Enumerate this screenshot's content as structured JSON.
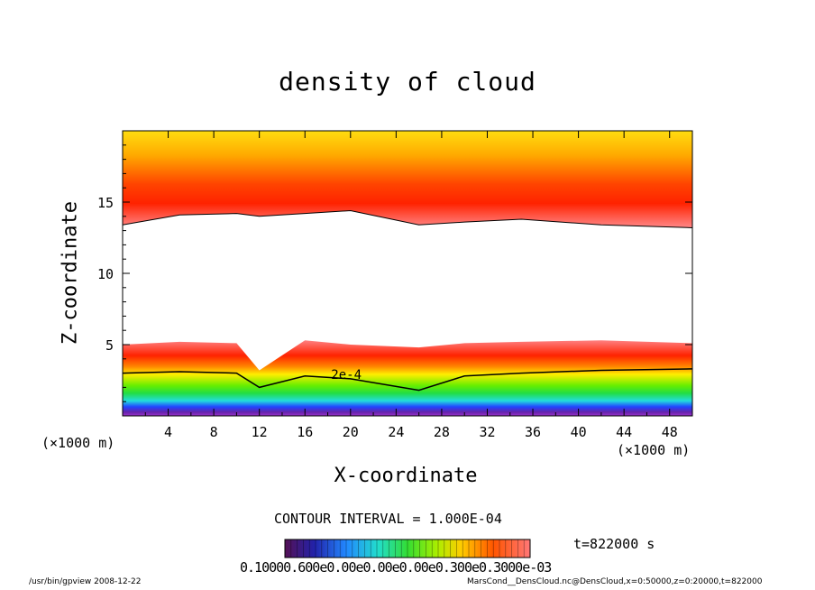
{
  "chart_data": {
    "type": "heatmap",
    "title": "density of cloud",
    "xlabel": "X-coordinate",
    "ylabel": "Z-coordinate",
    "x_unit": "(×1000 m)",
    "z_unit": "(×1000 m)",
    "xlim": [
      0,
      50
    ],
    "ylim": [
      0,
      20
    ],
    "x_ticks": [
      "4",
      "8",
      "12",
      "16",
      "20",
      "24",
      "28",
      "32",
      "36",
      "40",
      "44",
      "48"
    ],
    "x_tick_values": [
      4,
      8,
      12,
      16,
      20,
      24,
      28,
      32,
      36,
      40,
      44,
      48
    ],
    "y_ticks": [
      "5",
      "10",
      "15"
    ],
    "y_tick_values": [
      5,
      10,
      15
    ],
    "contour_label": "2e-4",
    "contour_interval": "CONTOUR INTERVAL = 1.000E-04",
    "time": "t=822000 s",
    "colorbar_labels": "0.10000.600e0.00e0.00e0.00e0.300e0.3000e-03",
    "upper_layer_base_km": [
      13.4,
      14.1,
      14.2,
      14.0,
      14.2,
      14.4,
      13.4,
      13.6,
      13.8,
      13.4,
      13.2
    ],
    "lower_layer_top_km": [
      5.0,
      5.2,
      5.1,
      3.2,
      5.3,
      5.0,
      4.8,
      5.1,
      5.2,
      5.3,
      5.1
    ],
    "contour_2e4_km": [
      3.0,
      3.1,
      3.0,
      2.0,
      2.8,
      2.6,
      1.8,
      2.8,
      3.0,
      3.2,
      3.3
    ],
    "sample_x_km": [
      0,
      5,
      10,
      12,
      16,
      20,
      26,
      30,
      35,
      42,
      50
    ]
  },
  "footer": {
    "left": "/usr/bin/gpview   2008-12-22",
    "right": "MarsCond__DensCloud.nc@DensCloud,x=0:50000,z=0:20000,t=822000"
  },
  "colors": {
    "top": "#ffdd00",
    "mid": "#ff3300",
    "low_red": "#ff6666",
    "green": "#33dd33",
    "cyan": "#33dddd",
    "blue": "#2222ff",
    "violet": "#7722aa"
  }
}
